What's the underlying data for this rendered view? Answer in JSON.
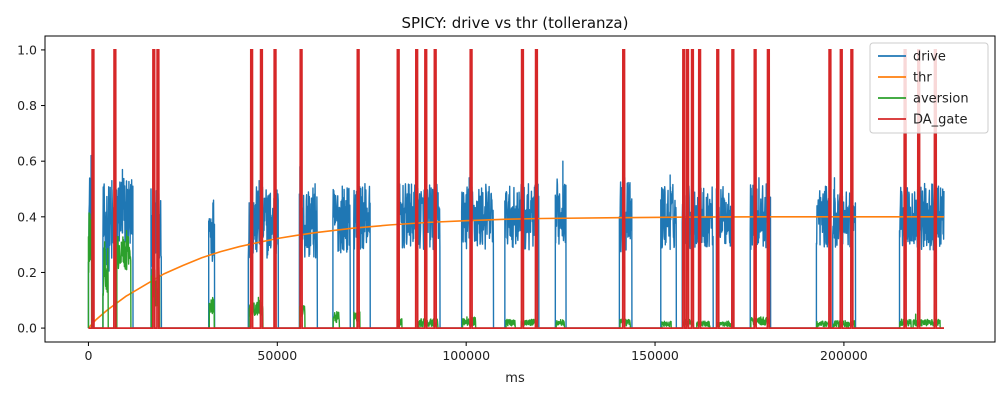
{
  "chart_data": {
    "type": "line",
    "title": "SPICY: drive vs thr (tolleranza)",
    "xlabel": "ms",
    "ylabel": "",
    "xlim": [
      -11500,
      240000
    ],
    "ylim": [
      -0.05,
      1.05
    ],
    "x_ticks": [
      0,
      50000,
      100000,
      150000,
      200000
    ],
    "x_tick_labels": [
      "0",
      "50000",
      "100000",
      "150000",
      "200000"
    ],
    "y_ticks": [
      0.0,
      0.2,
      0.4,
      0.6,
      0.8,
      1.0
    ],
    "y_tick_labels": [
      "0.0",
      "0.2",
      "0.4",
      "0.6",
      "0.8",
      "1.0"
    ],
    "grid": false,
    "legend_position": "top-right",
    "x_range": [
      0,
      226500
    ],
    "colors": {
      "drive": "#1f77b4",
      "thr": "#ff7f0e",
      "aversion": "#2ca02c",
      "DA_gate": "#d62728"
    },
    "series": [
      {
        "name": "drive",
        "kind": "bursty",
        "base": 0.0,
        "bursts": [
          {
            "start": 0,
            "end": 1200,
            "center": 0.4,
            "spread": 0.17
          },
          {
            "start": 3800,
            "end": 7600,
            "center": 0.36,
            "spread": 0.16
          },
          {
            "start": 7600,
            "end": 11800,
            "center": 0.42,
            "spread": 0.14
          },
          {
            "start": 16500,
            "end": 19300,
            "center": 0.36,
            "spread": 0.14
          },
          {
            "start": 31800,
            "end": 33400,
            "center": 0.36,
            "spread": 0.12
          },
          {
            "start": 42300,
            "end": 50300,
            "center": 0.38,
            "spread": 0.13
          },
          {
            "start": 55800,
            "end": 60600,
            "center": 0.38,
            "spread": 0.14
          },
          {
            "start": 64700,
            "end": 69300,
            "center": 0.39,
            "spread": 0.12
          },
          {
            "start": 70200,
            "end": 74600,
            "center": 0.4,
            "spread": 0.12
          },
          {
            "start": 81800,
            "end": 87200,
            "center": 0.4,
            "spread": 0.12
          },
          {
            "start": 87200,
            "end": 93100,
            "center": 0.4,
            "spread": 0.12
          },
          {
            "start": 98800,
            "end": 107200,
            "center": 0.4,
            "spread": 0.12
          },
          {
            "start": 110200,
            "end": 114300,
            "center": 0.4,
            "spread": 0.11
          },
          {
            "start": 114300,
            "end": 119200,
            "center": 0.4,
            "spread": 0.12
          },
          {
            "start": 123600,
            "end": 126400,
            "center": 0.42,
            "spread": 0.12
          },
          {
            "start": 140500,
            "end": 143900,
            "center": 0.4,
            "spread": 0.13
          },
          {
            "start": 151500,
            "end": 155600,
            "center": 0.4,
            "spread": 0.12
          },
          {
            "start": 157200,
            "end": 160600,
            "center": 0.4,
            "spread": 0.12
          },
          {
            "start": 160600,
            "end": 165400,
            "center": 0.4,
            "spread": 0.11
          },
          {
            "start": 166200,
            "end": 170700,
            "center": 0.4,
            "spread": 0.11
          },
          {
            "start": 175200,
            "end": 180600,
            "center": 0.4,
            "spread": 0.12
          },
          {
            "start": 192700,
            "end": 196400,
            "center": 0.4,
            "spread": 0.11
          },
          {
            "start": 197000,
            "end": 203100,
            "center": 0.4,
            "spread": 0.11
          },
          {
            "start": 214700,
            "end": 218100,
            "center": 0.4,
            "spread": 0.11
          },
          {
            "start": 218100,
            "end": 226500,
            "center": 0.4,
            "spread": 0.12
          }
        ],
        "peaks": [
          {
            "x": 700,
            "y": 0.62
          },
          {
            "x": 6200,
            "y": 0.53
          },
          {
            "x": 9000,
            "y": 0.57
          },
          {
            "x": 17800,
            "y": 0.45
          },
          {
            "x": 45200,
            "y": 0.53
          },
          {
            "x": 56000,
            "y": 0.58
          },
          {
            "x": 67200,
            "y": 0.51
          },
          {
            "x": 71500,
            "y": 0.52
          },
          {
            "x": 100800,
            "y": 0.54
          },
          {
            "x": 115000,
            "y": 0.51
          },
          {
            "x": 125600,
            "y": 0.6
          },
          {
            "x": 142000,
            "y": 0.54
          },
          {
            "x": 154000,
            "y": 0.55
          },
          {
            "x": 166500,
            "y": 0.52
          },
          {
            "x": 177500,
            "y": 0.54
          },
          {
            "x": 197500,
            "y": 0.54
          },
          {
            "x": 216000,
            "y": 0.54
          },
          {
            "x": 224000,
            "y": 0.52
          }
        ]
      },
      {
        "name": "thr",
        "kind": "curve",
        "points": [
          [
            0,
            0.0
          ],
          [
            2000,
            0.03
          ],
          [
            5000,
            0.065
          ],
          [
            10000,
            0.115
          ],
          [
            15000,
            0.155
          ],
          [
            20000,
            0.195
          ],
          [
            25000,
            0.225
          ],
          [
            30000,
            0.253
          ],
          [
            35000,
            0.275
          ],
          [
            40000,
            0.293
          ],
          [
            45000,
            0.308
          ],
          [
            50000,
            0.322
          ],
          [
            55000,
            0.333
          ],
          [
            60000,
            0.343
          ],
          [
            70000,
            0.359
          ],
          [
            80000,
            0.371
          ],
          [
            90000,
            0.38
          ],
          [
            100000,
            0.386
          ],
          [
            110000,
            0.391
          ],
          [
            120000,
            0.394
          ],
          [
            140000,
            0.397
          ],
          [
            160000,
            0.399
          ],
          [
            180000,
            0.4
          ],
          [
            226500,
            0.4
          ]
        ]
      },
      {
        "name": "aversion",
        "kind": "bursty",
        "base": 0.0,
        "bursts": [
          {
            "start": 0,
            "end": 800,
            "center": 0.3,
            "spread": 0.12
          },
          {
            "start": 3800,
            "end": 5200,
            "center": 0.2,
            "spread": 0.1
          },
          {
            "start": 7500,
            "end": 11200,
            "center": 0.27,
            "spread": 0.06
          },
          {
            "start": 16600,
            "end": 18800,
            "center": 0.15,
            "spread": 0.07
          },
          {
            "start": 32000,
            "end": 33300,
            "center": 0.08,
            "spread": 0.03
          },
          {
            "start": 42500,
            "end": 46200,
            "center": 0.07,
            "spread": 0.03
          },
          {
            "start": 55900,
            "end": 57300,
            "center": 0.06,
            "spread": 0.02
          },
          {
            "start": 64800,
            "end": 66400,
            "center": 0.04,
            "spread": 0.02
          },
          {
            "start": 70300,
            "end": 71900,
            "center": 0.04,
            "spread": 0.02
          },
          {
            "start": 82000,
            "end": 83000,
            "center": 0.02,
            "spread": 0.015
          },
          {
            "start": 87500,
            "end": 92500,
            "center": 0.02,
            "spread": 0.015
          },
          {
            "start": 99000,
            "end": 102500,
            "center": 0.025,
            "spread": 0.015
          },
          {
            "start": 110500,
            "end": 113000,
            "center": 0.02,
            "spread": 0.012
          },
          {
            "start": 114500,
            "end": 118500,
            "center": 0.02,
            "spread": 0.012
          },
          {
            "start": 123800,
            "end": 126000,
            "center": 0.02,
            "spread": 0.012
          },
          {
            "start": 140700,
            "end": 143500,
            "center": 0.02,
            "spread": 0.012
          },
          {
            "start": 151800,
            "end": 154300,
            "center": 0.015,
            "spread": 0.01
          },
          {
            "start": 157300,
            "end": 160200,
            "center": 0.02,
            "spread": 0.012
          },
          {
            "start": 161000,
            "end": 164500,
            "center": 0.015,
            "spread": 0.01
          },
          {
            "start": 166300,
            "end": 170300,
            "center": 0.015,
            "spread": 0.01
          },
          {
            "start": 175300,
            "end": 180300,
            "center": 0.025,
            "spread": 0.015
          },
          {
            "start": 192800,
            "end": 196000,
            "center": 0.015,
            "spread": 0.01
          },
          {
            "start": 197200,
            "end": 202800,
            "center": 0.015,
            "spread": 0.012
          },
          {
            "start": 214800,
            "end": 217800,
            "center": 0.02,
            "spread": 0.012
          },
          {
            "start": 218300,
            "end": 225500,
            "center": 0.02,
            "spread": 0.012
          }
        ],
        "peaks": [
          {
            "x": 400,
            "y": 0.41
          },
          {
            "x": 4300,
            "y": 0.31
          },
          {
            "x": 10100,
            "y": 0.35
          },
          {
            "x": 17500,
            "y": 0.21
          },
          {
            "x": 32600,
            "y": 0.1
          },
          {
            "x": 45000,
            "y": 0.11
          },
          {
            "x": 56200,
            "y": 0.07
          },
          {
            "x": 71000,
            "y": 0.05
          },
          {
            "x": 100200,
            "y": 0.04
          },
          {
            "x": 125000,
            "y": 0.03
          },
          {
            "x": 178000,
            "y": 0.04
          },
          {
            "x": 219000,
            "y": 0.05
          }
        ]
      },
      {
        "name": "DA_gate",
        "kind": "spikes",
        "value": 1.0,
        "spikes": [
          1200,
          7000,
          17300,
          18400,
          43200,
          45800,
          49400,
          56300,
          71400,
          82000,
          86900,
          89300,
          91800,
          101300,
          114900,
          118600,
          141700,
          157600,
          158600,
          159900,
          161800,
          166600,
          170600,
          176500,
          180000,
          196300,
          199300,
          202100,
          216200,
          219800,
          224200
        ]
      }
    ]
  }
}
